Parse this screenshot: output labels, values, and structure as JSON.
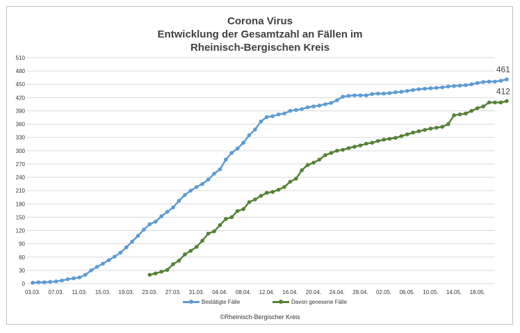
{
  "title_lines": [
    "Corona Virus",
    "Entwicklung der Gesamtzahl an Fällen im",
    "Rheinisch-Bergischen Kreis"
  ],
  "footer": "©Rheinisch-Bergischer Kreis",
  "chart_data": {
    "type": "line",
    "title": "Corona Virus Entwicklung der Gesamtzahl an Fällen im Rheinisch-Bergischen Kreis",
    "ylim": [
      0,
      510
    ],
    "y_ticks": [
      0,
      30,
      60,
      90,
      120,
      150,
      180,
      210,
      240,
      270,
      300,
      330,
      360,
      390,
      420,
      450,
      480,
      510
    ],
    "x_tick_labels": [
      "03.03.",
      "07.03.",
      "11.03.",
      "15.03.",
      "19.03.",
      "23.03.",
      "27.03.",
      "31.03.",
      "04.04.",
      "08.04.",
      "12.04.",
      "16.04.",
      "20.04.",
      "24.04.",
      "28.04.",
      "02.05.",
      "06.05.",
      "10.05.",
      "14.05.",
      "18.05."
    ],
    "x_start": "03.03.",
    "x_end": "21.05.",
    "grid": true,
    "legend_position": "bottom",
    "series": [
      {
        "name": "Bestätigte Fälle",
        "color": "#5b9bd5",
        "start": "03.03.",
        "end_label": "461",
        "values": [
          2,
          3,
          3,
          4,
          5,
          7,
          10,
          12,
          14,
          20,
          30,
          38,
          45,
          53,
          61,
          70,
          82,
          95,
          108,
          122,
          134,
          140,
          152,
          162,
          172,
          187,
          200,
          210,
          218,
          225,
          235,
          248,
          258,
          280,
          295,
          305,
          318,
          335,
          348,
          366,
          376,
          378,
          382,
          384,
          390,
          392,
          394,
          398,
          400,
          402,
          405,
          408,
          414,
          422,
          424,
          425,
          425,
          425,
          428,
          429,
          429,
          430,
          432,
          433,
          435,
          437,
          439,
          440,
          441,
          442,
          443,
          445,
          446,
          447,
          448,
          450,
          453,
          455,
          456,
          456,
          458,
          461
        ]
      },
      {
        "name": "Davon genesene Fälle",
        "color": "#548235",
        "start": "23.03.",
        "end_label": "412",
        "values": [
          20,
          23,
          27,
          31,
          44,
          52,
          66,
          74,
          83,
          97,
          113,
          118,
          132,
          146,
          150,
          164,
          168,
          184,
          190,
          198,
          205,
          207,
          212,
          218,
          230,
          237,
          256,
          268,
          273,
          280,
          290,
          295,
          300,
          302,
          306,
          309,
          312,
          316,
          318,
          322,
          325,
          327,
          329,
          333,
          337,
          341,
          344,
          347,
          350,
          352,
          354,
          360,
          380,
          382,
          384,
          390,
          396,
          400,
          409,
          409,
          409,
          412
        ]
      }
    ]
  }
}
